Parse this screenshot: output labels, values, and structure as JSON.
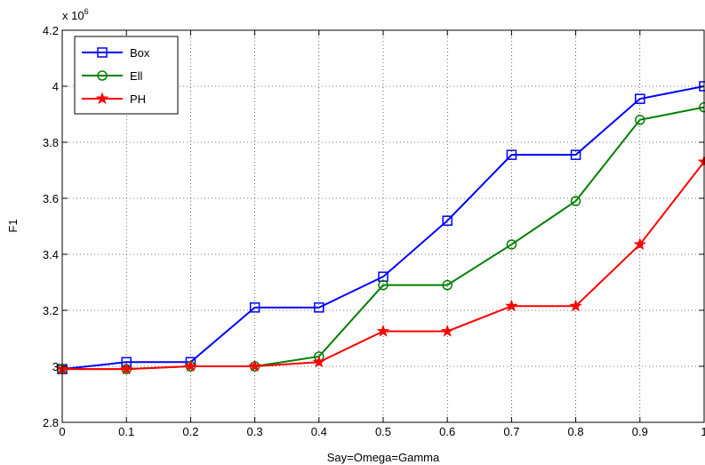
{
  "chart_data": {
    "type": "line",
    "title": "",
    "xlabel": "Say=Omega=Gamma",
    "ylabel": "F1",
    "y_exponent_base": "x 10",
    "y_exponent_power": "6",
    "xlim": [
      0,
      1
    ],
    "ylim": [
      2.8,
      4.2
    ],
    "xticks": [
      0,
      0.1,
      0.2,
      0.3,
      0.4,
      0.5,
      0.6,
      0.7,
      0.8,
      0.9,
      1
    ],
    "xtick_labels": [
      "0",
      "0.1",
      "0.2",
      "0.3",
      "0.4",
      "0.5",
      "0.6",
      "0.7",
      "0.8",
      "0.9",
      "1"
    ],
    "yticks": [
      2.8,
      3,
      3.2,
      3.4,
      3.6,
      3.8,
      4,
      4.2
    ],
    "ytick_labels": [
      "2.8",
      "3",
      "3.2",
      "3.4",
      "3.6",
      "3.8",
      "4",
      "4.2"
    ],
    "grid": true,
    "legend_position": "top-left",
    "x": [
      0,
      0.1,
      0.2,
      0.3,
      0.4,
      0.5,
      0.6,
      0.7,
      0.8,
      0.9,
      1
    ],
    "series": [
      {
        "name": "Box",
        "color": "#0000ff",
        "marker": "square",
        "values": [
          2.99,
          3.015,
          3.015,
          3.21,
          3.21,
          3.32,
          3.52,
          3.755,
          3.755,
          3.955,
          4.0
        ]
      },
      {
        "name": "Ell",
        "color": "#008000",
        "marker": "circle",
        "values": [
          2.99,
          2.99,
          3.0,
          3.0,
          3.035,
          3.29,
          3.29,
          3.435,
          3.59,
          3.88,
          3.925
        ]
      },
      {
        "name": "PH",
        "color": "#ff0000",
        "marker": "star",
        "values": [
          2.99,
          2.99,
          3.0,
          3.0,
          3.015,
          3.125,
          3.125,
          3.215,
          3.215,
          3.435,
          3.73
        ]
      }
    ]
  }
}
